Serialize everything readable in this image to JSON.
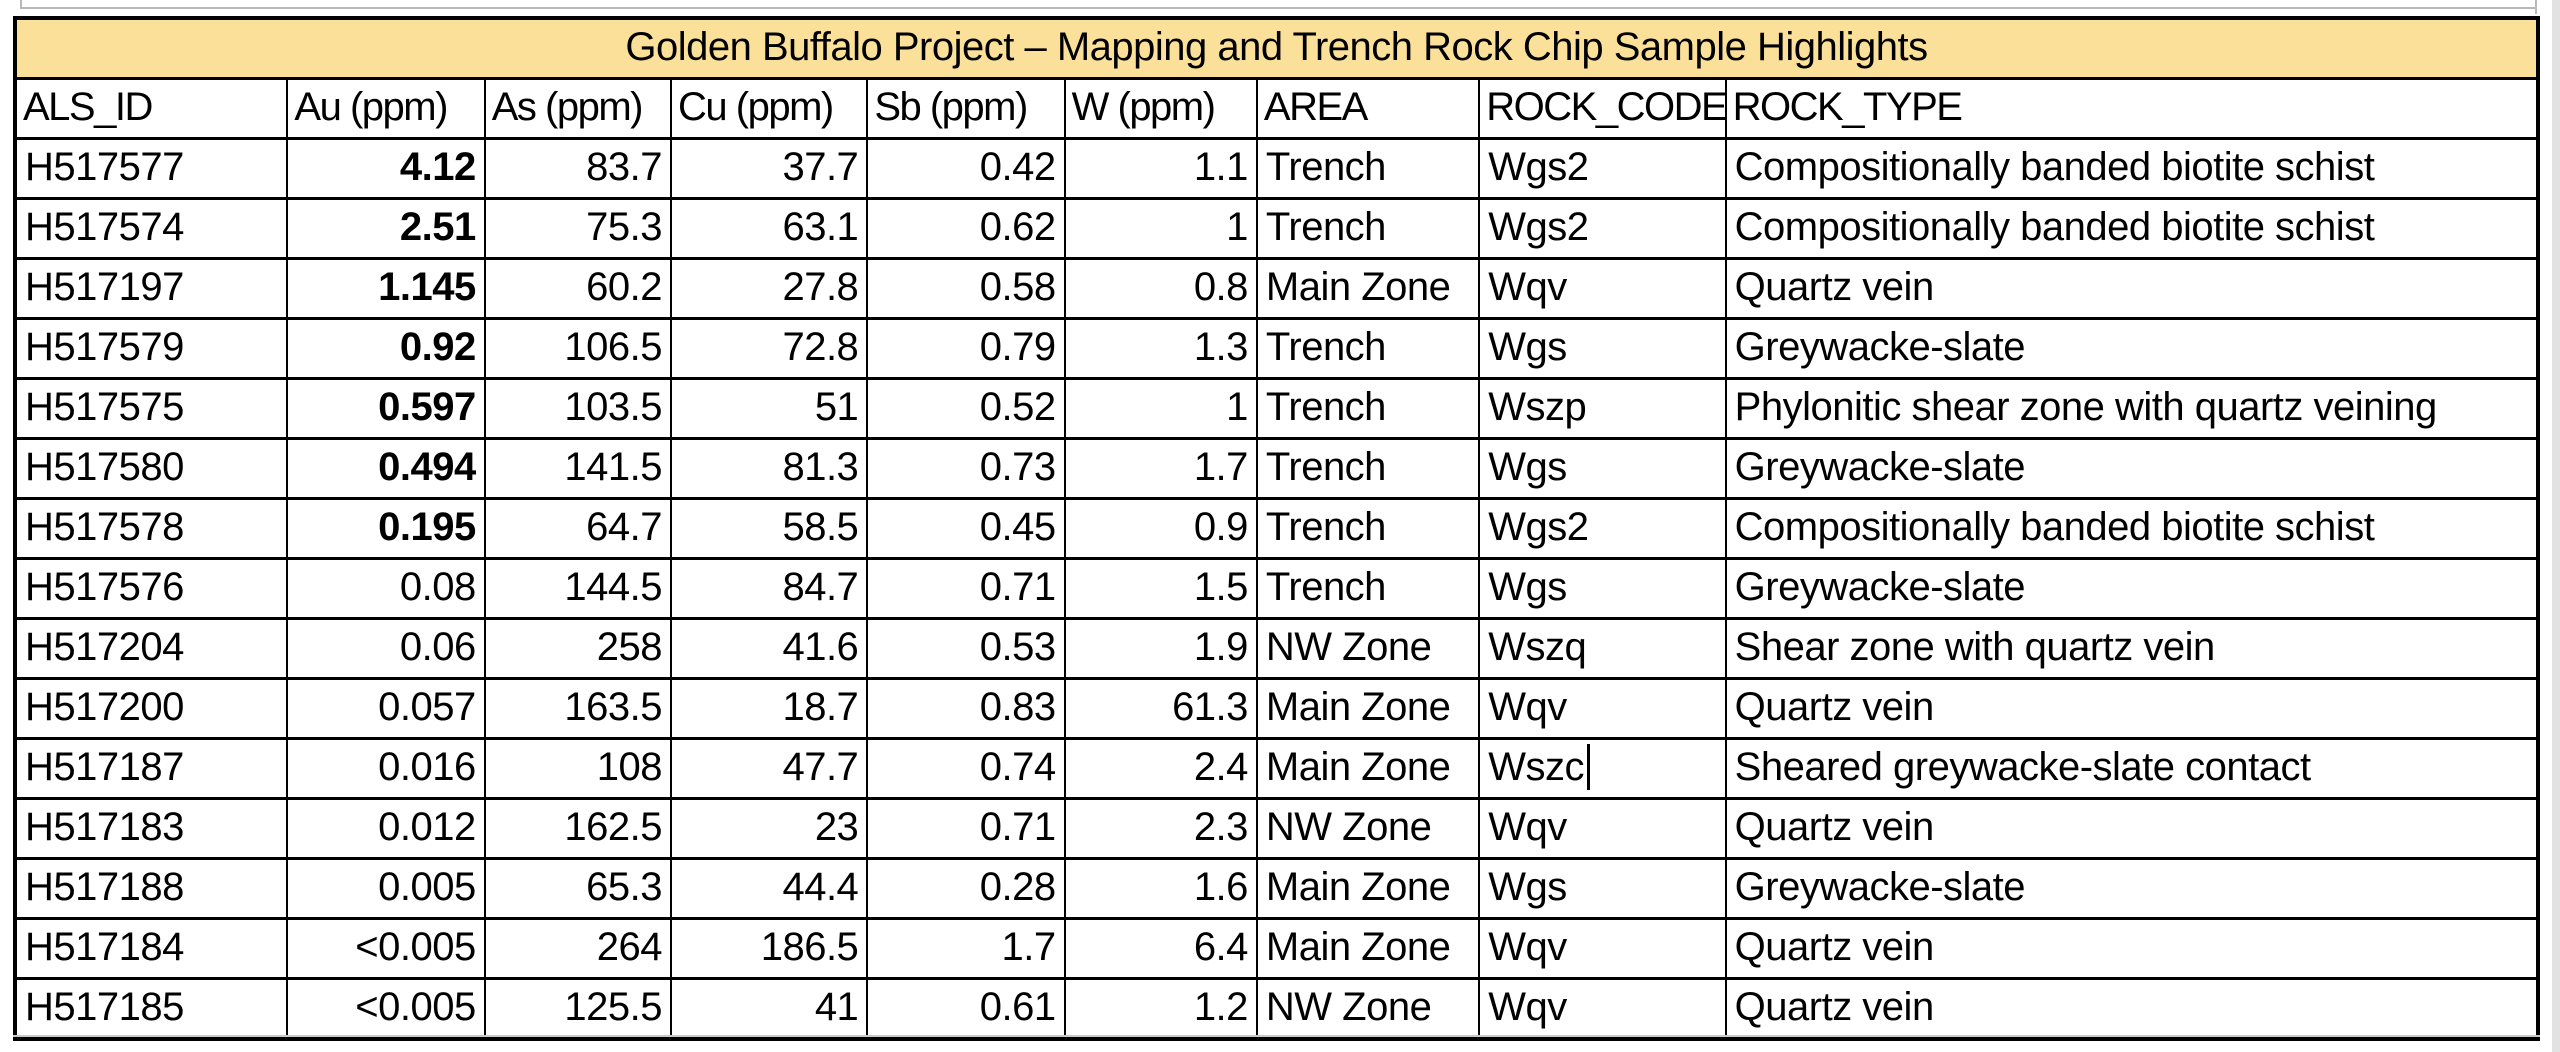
{
  "table": {
    "title": "Golden Buffalo Project – Mapping and Trench Rock Chip Sample Highlights",
    "title_bg": "#FBE09A",
    "columns": [
      {
        "label": "ALS_ID",
        "key": "als_id",
        "align": "left"
      },
      {
        "label": "Au (ppm)",
        "key": "au",
        "align": "right"
      },
      {
        "label": "As (ppm)",
        "key": "as",
        "align": "right"
      },
      {
        "label": "Cu (ppm)",
        "key": "cu",
        "align": "right"
      },
      {
        "label": "Sb (ppm)",
        "key": "sb",
        "align": "right"
      },
      {
        "label": "W (ppm)",
        "key": "w",
        "align": "right"
      },
      {
        "label": "AREA",
        "key": "area",
        "align": "left"
      },
      {
        "label": "ROCK_CODE",
        "key": "rock_code",
        "align": "left"
      },
      {
        "label": "ROCK_TYPE",
        "key": "rock_type",
        "align": "left"
      }
    ],
    "rows": [
      {
        "als_id": "H517577",
        "au": "4.12",
        "au_bold": true,
        "as": "83.7",
        "cu": "37.7",
        "sb": "0.42",
        "w": "1.1",
        "area": "Trench",
        "rock_code": "Wgs2",
        "rock_type": "Compositionally banded biotite schist"
      },
      {
        "als_id": "H517574",
        "au": "2.51",
        "au_bold": true,
        "as": "75.3",
        "cu": "63.1",
        "sb": "0.62",
        "w": "1",
        "area": "Trench",
        "rock_code": "Wgs2",
        "rock_type": "Compositionally banded biotite schist"
      },
      {
        "als_id": "H517197",
        "au": "1.145",
        "au_bold": true,
        "as": "60.2",
        "cu": "27.8",
        "sb": "0.58",
        "w": "0.8",
        "area": "Main Zone",
        "rock_code": "Wqv",
        "rock_type": "Quartz vein"
      },
      {
        "als_id": "H517579",
        "au": "0.92",
        "au_bold": true,
        "as": "106.5",
        "cu": "72.8",
        "sb": "0.79",
        "w": "1.3",
        "area": "Trench",
        "rock_code": "Wgs",
        "rock_type": "Greywacke-slate"
      },
      {
        "als_id": "H517575",
        "au": "0.597",
        "au_bold": true,
        "as": "103.5",
        "cu": "51",
        "sb": "0.52",
        "w": "1",
        "area": "Trench",
        "rock_code": "Wszp",
        "rock_type": "Phylonitic shear zone with quartz veining"
      },
      {
        "als_id": "H517580",
        "au": "0.494",
        "au_bold": true,
        "as": "141.5",
        "cu": "81.3",
        "sb": "0.73",
        "w": "1.7",
        "area": "Trench",
        "rock_code": "Wgs",
        "rock_type": "Greywacke-slate"
      },
      {
        "als_id": "H517578",
        "au": "0.195",
        "au_bold": true,
        "as": "64.7",
        "cu": "58.5",
        "sb": "0.45",
        "w": "0.9",
        "area": "Trench",
        "rock_code": "Wgs2",
        "rock_type": "Compositionally banded biotite schist"
      },
      {
        "als_id": "H517576",
        "au": "0.08",
        "au_bold": false,
        "as": "144.5",
        "cu": "84.7",
        "sb": "0.71",
        "w": "1.5",
        "area": "Trench",
        "rock_code": "Wgs",
        "rock_type": "Greywacke-slate"
      },
      {
        "als_id": "H517204",
        "au": "0.06",
        "au_bold": false,
        "as": "258",
        "cu": "41.6",
        "sb": "0.53",
        "w": "1.9",
        "area": "NW Zone",
        "rock_code": "Wszq",
        "rock_type": "Shear zone with quartz vein"
      },
      {
        "als_id": "H517200",
        "au": "0.057",
        "au_bold": false,
        "as": "163.5",
        "cu": "18.7",
        "sb": "0.83",
        "w": "61.3",
        "area": "Main Zone",
        "rock_code": "Wqv",
        "rock_type": "Quartz vein"
      },
      {
        "als_id": "H517187",
        "au": "0.016",
        "au_bold": false,
        "as": "108",
        "cu": "47.7",
        "sb": "0.74",
        "w": "2.4",
        "area": "Main Zone",
        "rock_code": "Wszc",
        "rock_type": "Sheared greywacke-slate contact",
        "editing_caret": "rock_code"
      },
      {
        "als_id": "H517183",
        "au": "0.012",
        "au_bold": false,
        "as": "162.5",
        "cu": "23",
        "sb": "0.71",
        "w": "2.3",
        "area": "NW Zone",
        "rock_code": "Wqv",
        "rock_type": "Quartz vein"
      },
      {
        "als_id": "H517188",
        "au": "0.005",
        "au_bold": false,
        "as": "65.3",
        "cu": "44.4",
        "sb": "0.28",
        "w": "1.6",
        "area": "Main Zone",
        "rock_code": "Wgs",
        "rock_type": "Greywacke-slate"
      },
      {
        "als_id": "H517184",
        "au": "<0.005",
        "au_bold": false,
        "as": "264",
        "cu": "186.5",
        "sb": "1.7",
        "w": "6.4",
        "area": "Main Zone",
        "rock_code": "Wqv",
        "rock_type": "Quartz vein"
      },
      {
        "als_id": "H517185",
        "au": "<0.005",
        "au_bold": false,
        "as": "125.5",
        "cu": "41",
        "sb": "0.61",
        "w": "1.2",
        "area": "NW Zone",
        "rock_code": "Wqv",
        "rock_type": "Quartz vein"
      }
    ]
  },
  "colors": {
    "title_bg": "#FBE09A",
    "border": "#000000",
    "gridline": "#B9B9B9",
    "gutter": "#E2E2E2"
  }
}
